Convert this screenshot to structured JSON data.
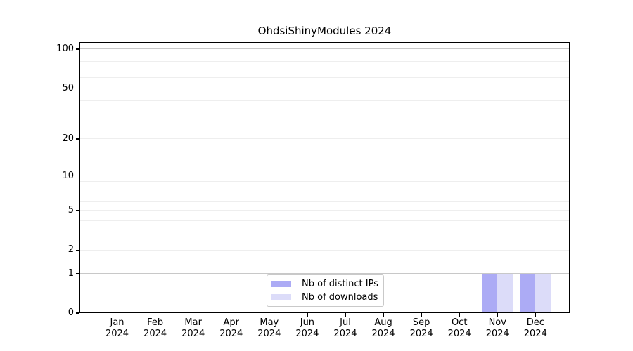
{
  "chart_data": {
    "type": "bar",
    "title": "OhdsiShinyModules 2024",
    "categories": [
      "Jan",
      "Feb",
      "Mar",
      "Apr",
      "May",
      "Jun",
      "Jul",
      "Aug",
      "Sep",
      "Oct",
      "Nov",
      "Dec"
    ],
    "year": "2024",
    "series": [
      {
        "name": "Nb of distinct IPs",
        "color": "#acabf5",
        "values": [
          0,
          0,
          0,
          0,
          0,
          0,
          0,
          0,
          0,
          0,
          1,
          1
        ]
      },
      {
        "name": "Nb of downloads",
        "color": "#dcdcf9",
        "values": [
          0,
          0,
          0,
          0,
          0,
          0,
          0,
          0,
          0,
          0,
          1,
          1
        ]
      }
    ],
    "y_axis": {
      "scale": "log1p",
      "tick_values": [
        0,
        1,
        2,
        5,
        10,
        20,
        50,
        100
      ],
      "tick_labels": [
        "0",
        "1",
        "2",
        "5",
        "10",
        "20",
        "50",
        "100"
      ],
      "max": 113,
      "major_grid_values": [
        1,
        10,
        100
      ],
      "minor_grid_values": [
        2,
        3,
        4,
        5,
        6,
        7,
        8,
        9,
        20,
        30,
        40,
        50,
        60,
        70,
        80,
        90
      ]
    },
    "x_axis": {
      "min": -0.99,
      "max": 11.9
    },
    "bar_width": 0.4,
    "bar_offset": 0.2,
    "legend": {
      "position": "bottom-center"
    },
    "colors": {
      "major_grid": "#c8c8c8",
      "minor_grid": "#eeeeee",
      "spine": "#000000",
      "background": "#ffffff"
    }
  }
}
